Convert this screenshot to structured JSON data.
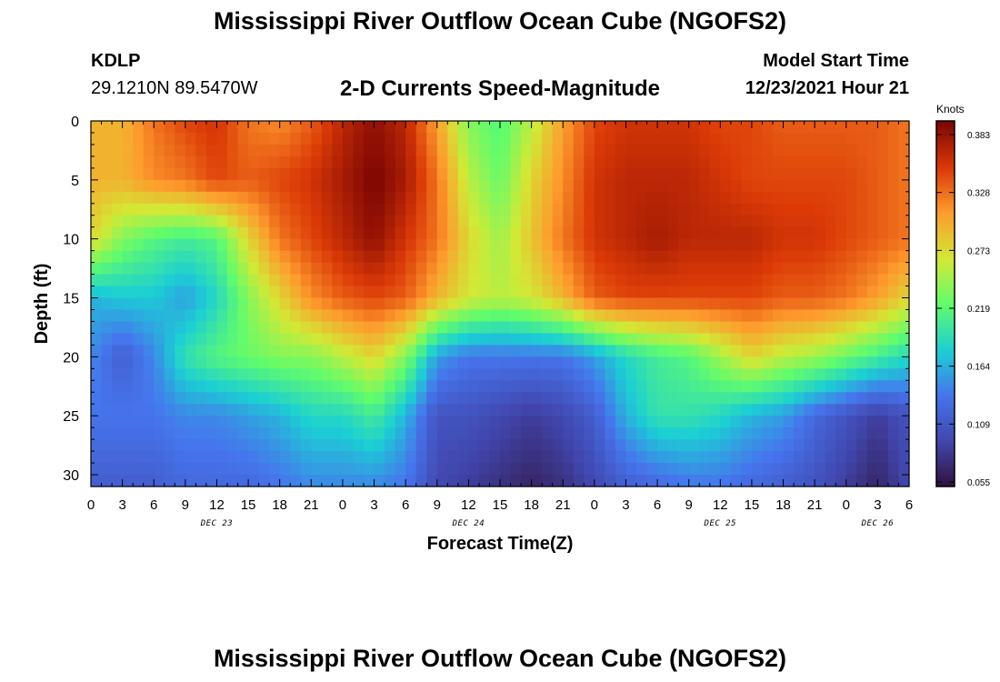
{
  "header": {
    "title": "Mississippi River Outflow Ocean Cube (NGOFS2)",
    "station": "KDLP",
    "coords": "29.1210N  89.5470W",
    "subtitle": "2-D Currents Speed-Magnitude",
    "model_label": "Model Start Time",
    "model_time": "12/23/2021 Hour 21"
  },
  "footer": {
    "title": "Mississippi River Outflow Ocean Cube (NGOFS2)"
  },
  "chart_data": {
    "type": "heatmap",
    "title": "2-D Currents Speed-Magnitude",
    "xlabel": "Forecast Time(Z)",
    "ylabel": "Depth (ft)",
    "x_ticks": [
      "0",
      "3",
      "6",
      "9",
      "12",
      "15",
      "18",
      "21",
      "0",
      "3",
      "6",
      "9",
      "12",
      "15",
      "18",
      "21",
      "0",
      "3",
      "6",
      "9",
      "12",
      "15",
      "18",
      "21",
      "0",
      "3",
      "6"
    ],
    "x_hours": [
      0,
      78
    ],
    "date_labels": [
      {
        "label": "DEC 23",
        "hour": 12
      },
      {
        "label": "DEC 24",
        "hour": 36
      },
      {
        "label": "DEC 25",
        "hour": 60
      },
      {
        "label": "DEC 26",
        "hour": 75
      }
    ],
    "y_ticks": [
      0,
      5,
      10,
      15,
      20,
      25,
      30
    ],
    "ylim": [
      0,
      31
    ],
    "colorbar": {
      "title": "Knots",
      "ticks": [
        "0.383",
        "0.328",
        "0.273",
        "0.219",
        "0.164",
        "0.109",
        "0.055"
      ],
      "range": [
        0.055,
        0.4
      ]
    },
    "speed_profiles": [
      {
        "hour": 0,
        "depth": [
          0,
          5,
          10,
          15,
          20,
          25,
          31
        ],
        "speed": [
          0.3,
          0.3,
          0.28,
          0.17,
          0.15,
          0.14,
          0.12
        ]
      },
      {
        "hour": 3,
        "depth": [
          0,
          5,
          10,
          15,
          20,
          25,
          31
        ],
        "speed": [
          0.3,
          0.3,
          0.24,
          0.18,
          0.12,
          0.14,
          0.12
        ]
      },
      {
        "hour": 6,
        "depth": [
          0,
          5,
          10,
          15,
          20,
          25,
          31
        ],
        "speed": [
          0.33,
          0.32,
          0.22,
          0.18,
          0.15,
          0.14,
          0.12
        ]
      },
      {
        "hour": 9,
        "depth": [
          0,
          5,
          10,
          15,
          20,
          25,
          31
        ],
        "speed": [
          0.35,
          0.33,
          0.21,
          0.16,
          0.2,
          0.15,
          0.13
        ]
      },
      {
        "hour": 12,
        "depth": [
          0,
          5,
          10,
          15,
          20,
          25,
          31
        ],
        "speed": [
          0.36,
          0.35,
          0.22,
          0.19,
          0.22,
          0.15,
          0.13
        ]
      },
      {
        "hour": 15,
        "depth": [
          0,
          5,
          10,
          15,
          20,
          25,
          31
        ],
        "speed": [
          0.33,
          0.34,
          0.28,
          0.24,
          0.23,
          0.16,
          0.13
        ]
      },
      {
        "hour": 18,
        "depth": [
          0,
          5,
          10,
          15,
          20,
          25,
          31
        ],
        "speed": [
          0.32,
          0.35,
          0.33,
          0.28,
          0.24,
          0.17,
          0.14
        ]
      },
      {
        "hour": 21,
        "depth": [
          0,
          5,
          10,
          15,
          20,
          25,
          31
        ],
        "speed": [
          0.34,
          0.36,
          0.35,
          0.32,
          0.24,
          0.19,
          0.15
        ]
      },
      {
        "hour": 24,
        "depth": [
          0,
          5,
          10,
          15,
          20,
          25,
          31
        ],
        "speed": [
          0.37,
          0.38,
          0.37,
          0.34,
          0.26,
          0.19,
          0.15
        ]
      },
      {
        "hour": 27,
        "depth": [
          0,
          5,
          10,
          15,
          20,
          25,
          31
        ],
        "speed": [
          0.39,
          0.4,
          0.39,
          0.35,
          0.28,
          0.21,
          0.15
        ]
      },
      {
        "hour": 30,
        "depth": [
          0,
          5,
          10,
          15,
          20,
          25,
          31
        ],
        "speed": [
          0.37,
          0.38,
          0.36,
          0.34,
          0.24,
          0.17,
          0.14
        ]
      },
      {
        "hour": 33,
        "depth": [
          0,
          5,
          10,
          15,
          20,
          25,
          31
        ],
        "speed": [
          0.31,
          0.33,
          0.33,
          0.3,
          0.16,
          0.11,
          0.1
        ]
      },
      {
        "hour": 36,
        "depth": [
          0,
          5,
          10,
          15,
          20,
          25,
          31
        ],
        "speed": [
          0.24,
          0.26,
          0.28,
          0.27,
          0.14,
          0.11,
          0.09
        ]
      },
      {
        "hour": 39,
        "depth": [
          0,
          5,
          10,
          15,
          20,
          25,
          31
        ],
        "speed": [
          0.22,
          0.23,
          0.25,
          0.26,
          0.14,
          0.1,
          0.08
        ]
      },
      {
        "hour": 42,
        "depth": [
          0,
          5,
          10,
          15,
          20,
          25,
          31
        ],
        "speed": [
          0.26,
          0.28,
          0.29,
          0.27,
          0.14,
          0.09,
          0.07
        ]
      },
      {
        "hour": 45,
        "depth": [
          0,
          5,
          10,
          15,
          20,
          25,
          31
        ],
        "speed": [
          0.31,
          0.32,
          0.33,
          0.3,
          0.14,
          0.1,
          0.08
        ]
      },
      {
        "hour": 48,
        "depth": [
          0,
          5,
          10,
          15,
          20,
          25,
          31
        ],
        "speed": [
          0.35,
          0.36,
          0.36,
          0.34,
          0.16,
          0.12,
          0.1
        ]
      },
      {
        "hour": 51,
        "depth": [
          0,
          5,
          10,
          15,
          20,
          25,
          31
        ],
        "speed": [
          0.36,
          0.37,
          0.37,
          0.35,
          0.19,
          0.17,
          0.12
        ]
      },
      {
        "hour": 54,
        "depth": [
          0,
          5,
          10,
          15,
          20,
          25,
          31
        ],
        "speed": [
          0.36,
          0.37,
          0.38,
          0.35,
          0.21,
          0.2,
          0.13
        ]
      },
      {
        "hour": 57,
        "depth": [
          0,
          5,
          10,
          15,
          20,
          25,
          31
        ],
        "speed": [
          0.36,
          0.37,
          0.37,
          0.35,
          0.22,
          0.2,
          0.14
        ]
      },
      {
        "hour": 60,
        "depth": [
          0,
          5,
          10,
          15,
          20,
          25,
          31
        ],
        "speed": [
          0.35,
          0.36,
          0.37,
          0.35,
          0.25,
          0.19,
          0.14
        ]
      },
      {
        "hour": 63,
        "depth": [
          0,
          5,
          10,
          15,
          20,
          25,
          31
        ],
        "speed": [
          0.35,
          0.35,
          0.37,
          0.35,
          0.28,
          0.17,
          0.13
        ]
      },
      {
        "hour": 66,
        "depth": [
          0,
          5,
          10,
          15,
          20,
          25,
          31
        ],
        "speed": [
          0.34,
          0.35,
          0.36,
          0.34,
          0.26,
          0.16,
          0.12
        ]
      },
      {
        "hour": 69,
        "depth": [
          0,
          5,
          10,
          15,
          20,
          25,
          31
        ],
        "speed": [
          0.34,
          0.35,
          0.36,
          0.34,
          0.25,
          0.13,
          0.11
        ]
      },
      {
        "hour": 72,
        "depth": [
          0,
          5,
          10,
          15,
          20,
          25,
          31
        ],
        "speed": [
          0.34,
          0.35,
          0.35,
          0.33,
          0.23,
          0.11,
          0.09
        ]
      },
      {
        "hour": 75,
        "depth": [
          0,
          5,
          10,
          15,
          20,
          25,
          31
        ],
        "speed": [
          0.34,
          0.34,
          0.34,
          0.31,
          0.21,
          0.09,
          0.07
        ]
      },
      {
        "hour": 78,
        "depth": [
          0,
          5,
          10,
          15,
          20,
          25,
          31
        ],
        "speed": [
          0.33,
          0.33,
          0.33,
          0.28,
          0.19,
          0.11,
          0.1
        ]
      }
    ]
  },
  "colors": {
    "axis": "#000000",
    "background": "#ffffff"
  }
}
